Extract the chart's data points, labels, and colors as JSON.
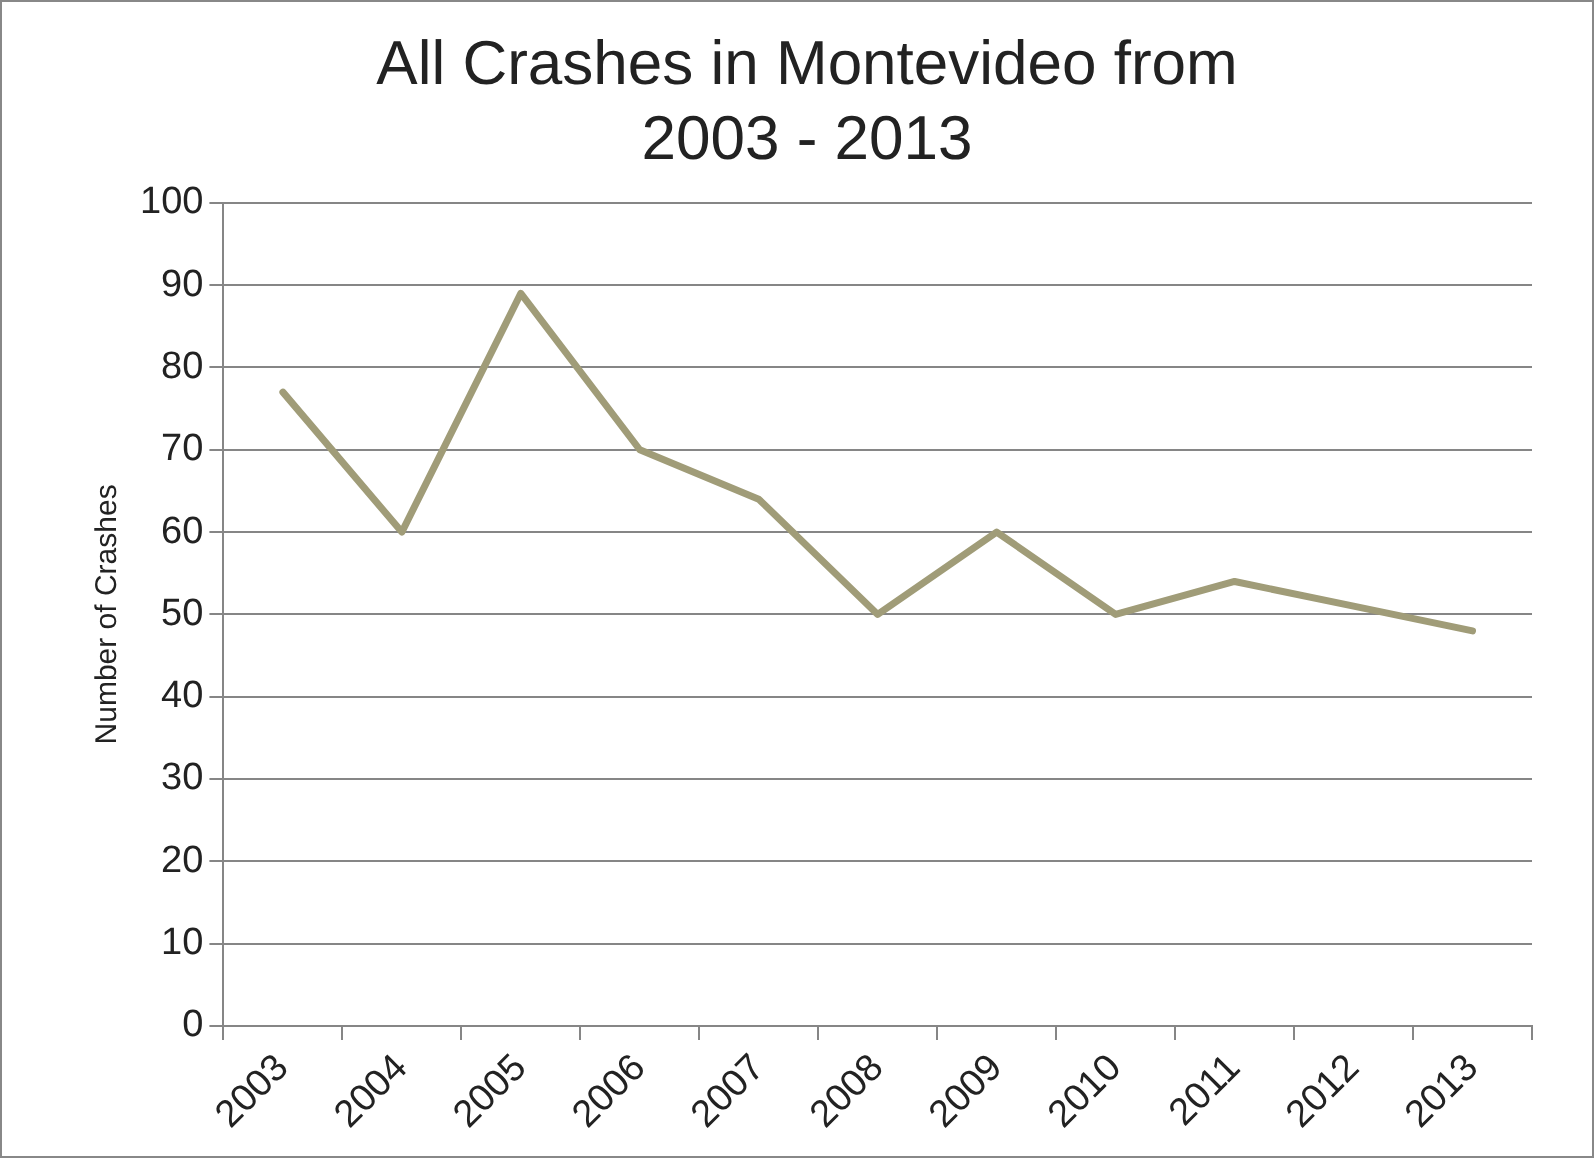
{
  "chart_data": {
    "type": "line",
    "title": [
      "All Crashes in Montevideo from",
      "2003 - 2013"
    ],
    "ylabel": "Number of Crashes",
    "categories": [
      "2003",
      "2004",
      "2005",
      "2006",
      "2007",
      "2008",
      "2009",
      "2010",
      "2011",
      "2012",
      "2013"
    ],
    "series": [
      {
        "color": "#a09c78",
        "values": [
          77,
          60,
          89,
          70,
          64,
          50,
          60,
          50,
          54,
          51,
          48
        ]
      }
    ],
    "ylim": [
      0,
      100
    ],
    "yticks": [
      0,
      10,
      20,
      30,
      40,
      50,
      60,
      70,
      80,
      90,
      100
    ],
    "grid": "y",
    "legend": false,
    "marker": "none",
    "line_style": "solid"
  }
}
